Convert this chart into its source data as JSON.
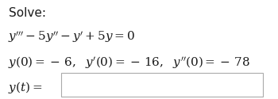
{
  "background_color": "#ffffff",
  "solve_label": "Solve:",
  "font_size_main": 11,
  "text_color": "#1a1a1a",
  "box_color": "#ffffff",
  "box_edge_color": "#aaaaaa"
}
